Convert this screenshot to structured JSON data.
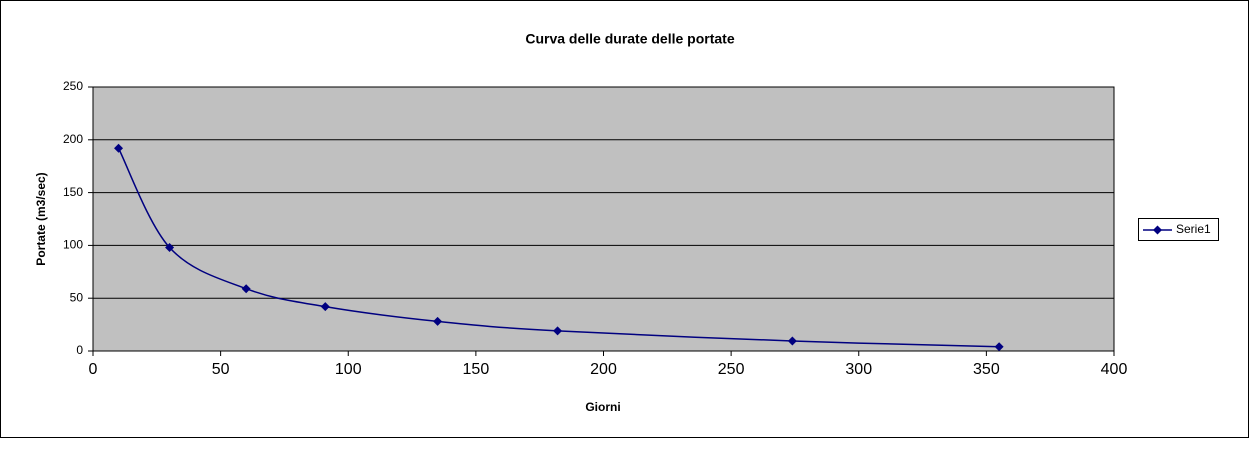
{
  "chart_data": {
    "type": "scatter",
    "title": "Curva delle durate delle portate",
    "x_label": "Giorni",
    "y_label": "Portate (m3/sec)",
    "series": [
      {
        "name": "Serie1",
        "color": "#000080",
        "x": [
          10,
          30,
          60,
          91,
          135,
          182,
          274,
          355
        ],
        "values": [
          192,
          98,
          59,
          42,
          28,
          19,
          9.5,
          4
        ]
      }
    ],
    "xlim": [
      0,
      400
    ],
    "xticks": [
      0,
      50,
      100,
      150,
      200,
      250,
      300,
      350,
      400
    ],
    "ylim": [
      0,
      250
    ],
    "yticks": [
      0,
      50,
      100,
      150,
      200,
      250
    ],
    "grid": true,
    "smooth": true,
    "marker": "diamond",
    "legend": "right",
    "plot_background": "#c0c0c0"
  }
}
